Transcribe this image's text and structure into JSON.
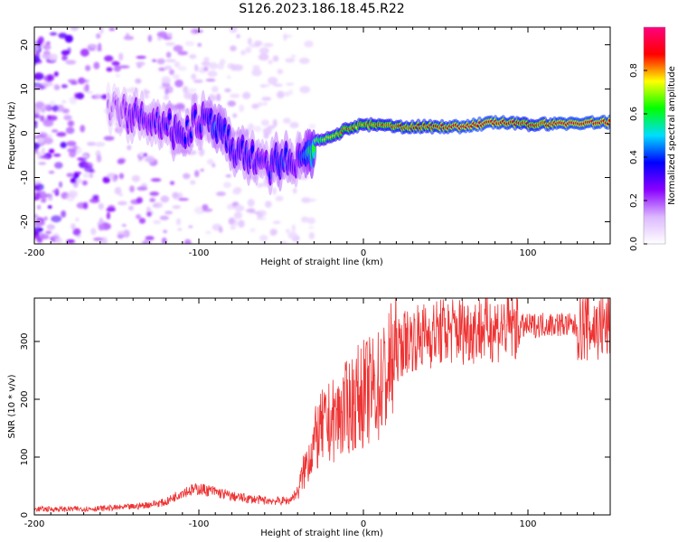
{
  "chart_data": [
    {
      "type": "heatmap",
      "title": "S126.2023.186.18.45.R22",
      "xlabel": "Height of straight line (km)",
      "ylabel": "Frequency (Hz)",
      "xlim": [
        -200,
        150
      ],
      "ylim": [
        -25,
        24
      ],
      "xticks": [
        -200,
        -100,
        0,
        100
      ],
      "yticks": [
        -20,
        -10,
        0,
        10,
        20
      ],
      "colorbar": {
        "label": "Normalized spectral amplitude",
        "range": [
          0,
          1
        ],
        "ticks": [
          0.0,
          0.2,
          0.4,
          0.6,
          0.8
        ],
        "colors": [
          "#ffffff",
          "#dcb8ff",
          "#8a00ff",
          "#0000ff",
          "#00ddff",
          "#00ff00",
          "#ffff00",
          "#ff0000",
          "#ff0080"
        ]
      },
      "ridge": {
        "x": [
          -155,
          -140,
          -125,
          -110,
          -100,
          -90,
          -80,
          -70,
          -60,
          -50,
          -40,
          -30,
          -20,
          -10,
          0,
          20,
          40,
          60,
          80,
          100,
          120,
          150
        ],
        "y": [
          6,
          4,
          3,
          0,
          3,
          1,
          -3,
          -5,
          -8,
          -6,
          -7,
          -2,
          -1,
          1,
          2,
          1.5,
          1.5,
          1.5,
          2.5,
          2,
          2.2,
          2.5
        ],
        "amplitude": [
          0.15,
          0.3,
          0.3,
          0.35,
          0.3,
          0.4,
          0.35,
          0.35,
          0.3,
          0.4,
          0.3,
          0.65,
          0.75,
          0.8,
          0.8,
          0.85,
          0.85,
          0.9,
          0.9,
          0.85,
          0.9,
          0.9
        ]
      }
    },
    {
      "type": "line",
      "xlabel": "Height of straight line (km)",
      "ylabel": "SNR (10 * v/v)",
      "xlim": [
        -200,
        150
      ],
      "ylim": [
        0,
        375
      ],
      "xticks": [
        -200,
        -100,
        0,
        100
      ],
      "yticks": [
        0,
        100,
        200,
        300
      ],
      "line_color": "#ee3333",
      "series": [
        {
          "name": "SNR",
          "x": [
            -200,
            -180,
            -160,
            -140,
            -120,
            -110,
            -100,
            -90,
            -80,
            -70,
            -60,
            -50,
            -45,
            -40,
            -35,
            -30,
            -25,
            -20,
            -15,
            -10,
            -5,
            0,
            5,
            10,
            15,
            20,
            25,
            30,
            40,
            50,
            60,
            70,
            80,
            90,
            100,
            110,
            120,
            130,
            140,
            150
          ],
          "values": [
            10,
            10,
            11,
            14,
            22,
            40,
            45,
            40,
            32,
            28,
            25,
            24,
            25,
            40,
            85,
            125,
            150,
            160,
            170,
            185,
            200,
            210,
            215,
            225,
            245,
            280,
            300,
            305,
            312,
            318,
            320,
            322,
            324,
            326,
            326,
            330,
            330,
            325,
            324,
            325
          ]
        }
      ]
    }
  ]
}
